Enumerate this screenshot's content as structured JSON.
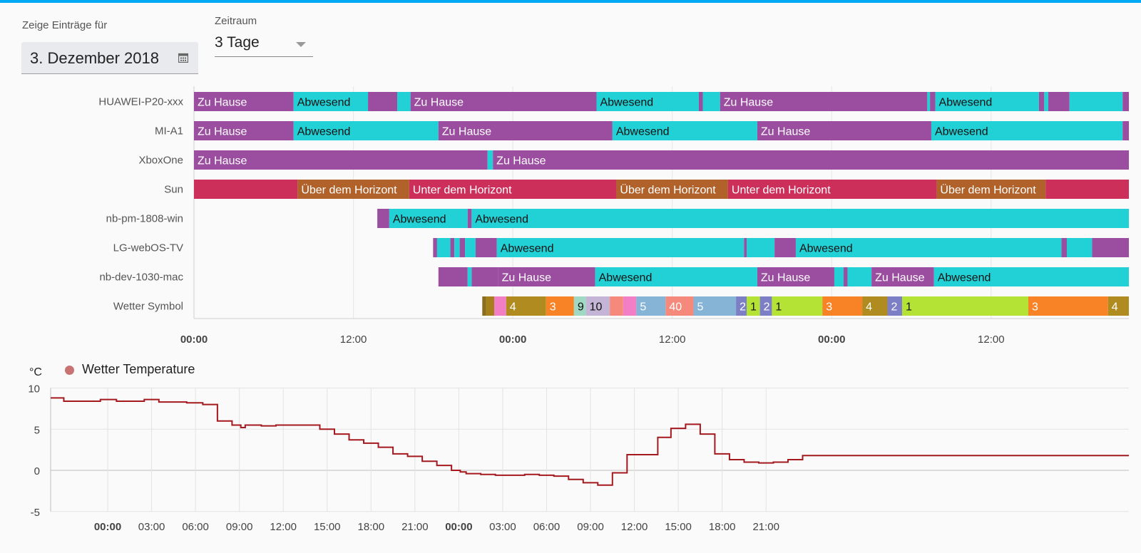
{
  "filters": {
    "date_label": "Zeige Einträge für",
    "date_value": "3. Dezember 2018",
    "range_label": "Zeitraum",
    "range_value": "3 Tage",
    "calendar_icon": "calendar-icon",
    "dropdown_icon": "chevron-down-icon"
  },
  "colors": {
    "accent": "#03a9f4",
    "home": "#9b4ea0",
    "away": "#22d1d6",
    "sun_below": "#cb2f5a",
    "sun_above": "#b0622a",
    "temperature_line": "#a3191e"
  },
  "timeline": {
    "rows": [
      {
        "name": "HUAWEI-P20-xxx",
        "segments": [
          {
            "start": 0,
            "end": 7.5,
            "state": "Zu Hause",
            "color": "#9b4ea0"
          },
          {
            "start": 7.5,
            "end": 13.1,
            "state": "Abwesend",
            "color": "#22d1d6"
          },
          {
            "start": 13.1,
            "end": 15.3,
            "state": "",
            "color": "#9b4ea0"
          },
          {
            "start": 15.3,
            "end": 16.3,
            "state": "",
            "color": "#22d1d6"
          },
          {
            "start": 16.3,
            "end": 30.3,
            "state": "Zu Hause",
            "color": "#9b4ea0"
          },
          {
            "start": 30.3,
            "end": 38.0,
            "state": "Abwesend",
            "color": "#22d1d6"
          },
          {
            "start": 38.0,
            "end": 38.3,
            "state": "",
            "color": "#9b4ea0"
          },
          {
            "start": 38.3,
            "end": 39.6,
            "state": "",
            "color": "#22d1d6"
          },
          {
            "start": 39.6,
            "end": 55.2,
            "state": "Zu Hause",
            "color": "#9b4ea0"
          },
          {
            "start": 55.2,
            "end": 55.4,
            "state": "",
            "color": "#22d1d6"
          },
          {
            "start": 55.4,
            "end": 55.8,
            "state": "",
            "color": "#9b4ea0"
          },
          {
            "start": 55.8,
            "end": 63.6,
            "state": "Abwesend",
            "color": "#22d1d6"
          },
          {
            "start": 63.6,
            "end": 64.0,
            "state": "",
            "color": "#9b4ea0"
          },
          {
            "start": 64.0,
            "end": 64.3,
            "state": "",
            "color": "#22d1d6"
          },
          {
            "start": 64.3,
            "end": 65.9,
            "state": "",
            "color": "#9b4ea0"
          },
          {
            "start": 65.9,
            "end": 69.9,
            "state": "",
            "color": "#22d1d6"
          },
          {
            "start": 69.9,
            "end": 70.5,
            "state": "",
            "color": "#9b4ea0"
          }
        ]
      },
      {
        "name": "MI-A1",
        "segments": [
          {
            "start": 0,
            "end": 7.5,
            "state": "Zu Hause",
            "color": "#9b4ea0"
          },
          {
            "start": 7.5,
            "end": 18.4,
            "state": "Abwesend",
            "color": "#22d1d6"
          },
          {
            "start": 18.4,
            "end": 31.5,
            "state": "Zu Hause",
            "color": "#9b4ea0"
          },
          {
            "start": 31.5,
            "end": 42.4,
            "state": "Abwesend",
            "color": "#22d1d6"
          },
          {
            "start": 42.4,
            "end": 55.5,
            "state": "Zu Hause",
            "color": "#9b4ea0"
          },
          {
            "start": 55.5,
            "end": 69.9,
            "state": "Abwesend",
            "color": "#22d1d6"
          },
          {
            "start": 69.9,
            "end": 70.5,
            "state": "",
            "color": "#9b4ea0"
          }
        ]
      },
      {
        "name": "XboxOne",
        "segments": [
          {
            "start": 0,
            "end": 22.1,
            "state": "Zu Hause",
            "color": "#9b4ea0"
          },
          {
            "start": 22.1,
            "end": 22.5,
            "state": "",
            "color": "#22d1d6"
          },
          {
            "start": 22.5,
            "end": 70.5,
            "state": "Zu Hause",
            "color": "#9b4ea0"
          }
        ]
      },
      {
        "name": "Sun",
        "segments": [
          {
            "start": 0,
            "end": 7.8,
            "state": "",
            "color": "#cb2f5a"
          },
          {
            "start": 7.8,
            "end": 16.2,
            "state": "Über dem Horizont",
            "color": "#b0622a"
          },
          {
            "start": 16.2,
            "end": 31.8,
            "state": "Unter dem Horizont",
            "color": "#cb2f5a"
          },
          {
            "start": 31.8,
            "end": 40.2,
            "state": "Über dem Horizont",
            "color": "#b0622a"
          },
          {
            "start": 40.2,
            "end": 55.9,
            "state": "Unter dem Horizont",
            "color": "#cb2f5a"
          },
          {
            "start": 55.9,
            "end": 64.1,
            "state": "Über dem Horizont",
            "color": "#b0622a"
          },
          {
            "start": 64.1,
            "end": 70.5,
            "state": "",
            "color": "#cb2f5a"
          }
        ]
      },
      {
        "name": "nb-pm-1808-win",
        "segments": [
          {
            "start": 13.8,
            "end": 14.7,
            "state": "",
            "color": "#9b4ea0"
          },
          {
            "start": 14.7,
            "end": 20.6,
            "state": "Abwesend",
            "color": "#22d1d6"
          },
          {
            "start": 20.6,
            "end": 20.9,
            "state": "",
            "color": "#9b4ea0"
          },
          {
            "start": 20.9,
            "end": 70.5,
            "state": "Abwesend",
            "color": "#22d1d6"
          }
        ]
      },
      {
        "name": "LG-webOS-TV",
        "segments": [
          {
            "start": 18.0,
            "end": 18.3,
            "state": "",
            "color": "#9b4ea0"
          },
          {
            "start": 18.3,
            "end": 19.3,
            "state": "",
            "color": "#22d1d6"
          },
          {
            "start": 19.3,
            "end": 19.6,
            "state": "",
            "color": "#9b4ea0"
          },
          {
            "start": 19.6,
            "end": 20.0,
            "state": "",
            "color": "#22d1d6"
          },
          {
            "start": 20.0,
            "end": 20.4,
            "state": "",
            "color": "#9b4ea0"
          },
          {
            "start": 20.4,
            "end": 21.2,
            "state": "",
            "color": "#22d1d6"
          },
          {
            "start": 21.2,
            "end": 22.8,
            "state": "",
            "color": "#9b4ea0"
          },
          {
            "start": 22.8,
            "end": 41.4,
            "state": "Abwesend",
            "color": "#22d1d6"
          },
          {
            "start": 41.4,
            "end": 41.6,
            "state": "",
            "color": "#9b4ea0"
          },
          {
            "start": 41.6,
            "end": 43.7,
            "state": "",
            "color": "#22d1d6"
          },
          {
            "start": 43.7,
            "end": 45.3,
            "state": "",
            "color": "#9b4ea0"
          },
          {
            "start": 45.3,
            "end": 65.3,
            "state": "Abwesend",
            "color": "#22d1d6"
          },
          {
            "start": 65.3,
            "end": 65.7,
            "state": "",
            "color": "#9b4ea0"
          },
          {
            "start": 65.7,
            "end": 67.6,
            "state": "",
            "color": "#22d1d6"
          },
          {
            "start": 67.6,
            "end": 70.5,
            "state": "",
            "color": "#9b4ea0"
          }
        ]
      },
      {
        "name": "nb-dev-1030-mac",
        "segments": [
          {
            "start": 18.4,
            "end": 20.6,
            "state": "",
            "color": "#9b4ea0"
          },
          {
            "start": 20.6,
            "end": 20.9,
            "state": "",
            "color": "#22d1d6"
          },
          {
            "start": 20.9,
            "end": 22.9,
            "state": "",
            "color": "#9b4ea0"
          },
          {
            "start": 22.9,
            "end": 30.2,
            "state": "Zu Hause",
            "color": "#9b4ea0"
          },
          {
            "start": 30.2,
            "end": 42.4,
            "state": "Abwesend",
            "color": "#22d1d6"
          },
          {
            "start": 42.4,
            "end": 48.2,
            "state": "Zu Hause",
            "color": "#9b4ea0"
          },
          {
            "start": 48.2,
            "end": 48.9,
            "state": "",
            "color": "#22d1d6"
          },
          {
            "start": 48.9,
            "end": 49.2,
            "state": "",
            "color": "#9b4ea0"
          },
          {
            "start": 49.2,
            "end": 51.0,
            "state": "",
            "color": "#22d1d6"
          },
          {
            "start": 51.0,
            "end": 55.7,
            "state": "Zu Hause",
            "color": "#9b4ea0"
          },
          {
            "start": 55.7,
            "end": 70.5,
            "state": "Abwesend",
            "color": "#22d1d6"
          }
        ]
      },
      {
        "name": "Wetter Symbol",
        "segments": [
          {
            "start": 21.7,
            "end": 22.0,
            "state": "",
            "color": "#8c6d1f"
          },
          {
            "start": 22.0,
            "end": 22.6,
            "state": "",
            "color": "#a77f1c"
          },
          {
            "start": 22.6,
            "end": 23.5,
            "state": "",
            "color": "#f27fc6"
          },
          {
            "start": 23.5,
            "end": 26.5,
            "state": "4",
            "color": "#b08b1f"
          },
          {
            "start": 26.5,
            "end": 28.6,
            "state": "3",
            "color": "#f88326"
          },
          {
            "start": 28.6,
            "end": 29.5,
            "state": "9",
            "color": "#9fd9c4"
          },
          {
            "start": 29.5,
            "end": 31.3,
            "state": "10",
            "color": "#c4b5d6"
          },
          {
            "start": 31.3,
            "end": 32.3,
            "state": "",
            "color": "#f58a7c"
          },
          {
            "start": 32.3,
            "end": 33.3,
            "state": "",
            "color": "#f27fc6"
          },
          {
            "start": 33.3,
            "end": 35.5,
            "state": "5",
            "color": "#86b4d6"
          },
          {
            "start": 35.5,
            "end": 37.6,
            "state": "40",
            "color": "#f58a7c"
          },
          {
            "start": 37.6,
            "end": 40.8,
            "state": "5",
            "color": "#86b4d6"
          },
          {
            "start": 40.8,
            "end": 41.6,
            "state": "2",
            "color": "#7d7fc6"
          },
          {
            "start": 41.6,
            "end": 42.6,
            "state": "1",
            "color": "#b4e336"
          },
          {
            "start": 42.6,
            "end": 43.5,
            "state": "2",
            "color": "#7d7fc6"
          },
          {
            "start": 43.5,
            "end": 47.3,
            "state": "1",
            "color": "#b4e336"
          },
          {
            "start": 47.3,
            "end": 50.3,
            "state": "3",
            "color": "#f88326"
          },
          {
            "start": 50.3,
            "end": 52.2,
            "state": "4",
            "color": "#b08b1f"
          },
          {
            "start": 52.2,
            "end": 53.3,
            "state": "2",
            "color": "#7d7fc6"
          },
          {
            "start": 53.3,
            "end": 62.8,
            "state": "1",
            "color": "#b4e336"
          },
          {
            "start": 62.8,
            "end": 68.8,
            "state": "3",
            "color": "#f88326"
          },
          {
            "start": 68.8,
            "end": 70.5,
            "state": "4",
            "color": "#b08b1f"
          }
        ]
      }
    ],
    "x_ticks": [
      {
        "hour": 0,
        "label": "00:00",
        "bold": true
      },
      {
        "hour": 12,
        "label": "12:00",
        "bold": false
      },
      {
        "hour": 24,
        "label": "00:00",
        "bold": true
      },
      {
        "hour": 36,
        "label": "12:00",
        "bold": false
      },
      {
        "hour": 48,
        "label": "00:00",
        "bold": true
      },
      {
        "hour": 60,
        "label": "12:00",
        "bold": false
      }
    ]
  },
  "chart_data": {
    "type": "line",
    "title": "",
    "xlabel": "",
    "ylabel": "°C",
    "ylim": [
      -5,
      10
    ],
    "y_ticks": [
      10,
      5,
      0,
      -5
    ],
    "xlim": [
      -3.9,
      69.8
    ],
    "x_ticks": [
      {
        "hour": 0,
        "label": "00:00",
        "bold": true
      },
      {
        "hour": 3,
        "label": "03:00",
        "bold": false
      },
      {
        "hour": 6,
        "label": "06:00",
        "bold": false
      },
      {
        "hour": 9,
        "label": "09:00",
        "bold": false
      },
      {
        "hour": 12,
        "label": "12:00",
        "bold": false
      },
      {
        "hour": 15,
        "label": "15:00",
        "bold": false
      },
      {
        "hour": 18,
        "label": "18:00",
        "bold": false
      },
      {
        "hour": 21,
        "label": "21:00",
        "bold": false
      },
      {
        "hour": 24,
        "label": "00:00",
        "bold": true
      },
      {
        "hour": 27,
        "label": "03:00",
        "bold": false
      },
      {
        "hour": 30,
        "label": "06:00",
        "bold": false
      },
      {
        "hour": 33,
        "label": "09:00",
        "bold": false
      },
      {
        "hour": 36,
        "label": "12:00",
        "bold": false
      },
      {
        "hour": 39,
        "label": "15:00",
        "bold": false
      },
      {
        "hour": 42,
        "label": "18:00",
        "bold": false
      },
      {
        "hour": 45,
        "label": "21:00",
        "bold": false
      }
    ],
    "legend_position": "top-left",
    "grid": true,
    "step": true,
    "series": [
      {
        "name": "Wetter Temperature",
        "color": "#a3191e",
        "x": [
          -3.9,
          -3.0,
          -1.5,
          -0.5,
          0.6,
          2.5,
          3.5,
          5.4,
          6.5,
          7.5,
          8.5,
          9.1,
          9.4,
          10.5,
          11.5,
          14.5,
          15.5,
          16.5,
          17.5,
          18.5,
          19.5,
          20.5,
          21.5,
          22.5,
          23.5,
          24.1,
          24.5,
          25.5,
          26.5,
          28.5,
          29.5,
          30.5,
          31.5,
          32.5,
          33.5,
          34.5,
          35.5,
          37.6,
          38.5,
          39.5,
          40.5,
          41.5,
          42.5,
          43.5,
          44.5,
          45.5,
          46.5,
          47.5,
          48.5,
          49.5,
          50.5,
          51.5,
          52.5,
          53.5,
          54.6,
          55.6
        ],
        "y": [
          8.8,
          8.4,
          8.4,
          8.6,
          8.4,
          8.6,
          8.3,
          8.2,
          8.0,
          6.0,
          5.5,
          5.2,
          5.5,
          5.4,
          5.5,
          5.0,
          4.4,
          3.7,
          3.3,
          2.8,
          2.0,
          1.7,
          1.1,
          0.6,
          0.0,
          -0.2,
          -0.4,
          -0.5,
          -0.6,
          -0.5,
          -0.6,
          -0.7,
          -1.1,
          -1.5,
          -1.8,
          -0.3,
          1.9,
          4.0,
          5.1,
          5.6,
          4.4,
          2.0,
          1.3,
          1.0,
          0.9,
          1.0,
          1.3,
          1.8,
          1.8,
          1.8,
          1.8,
          1.8,
          1.8,
          1.8,
          1.8,
          1.8
        ]
      }
    ]
  }
}
